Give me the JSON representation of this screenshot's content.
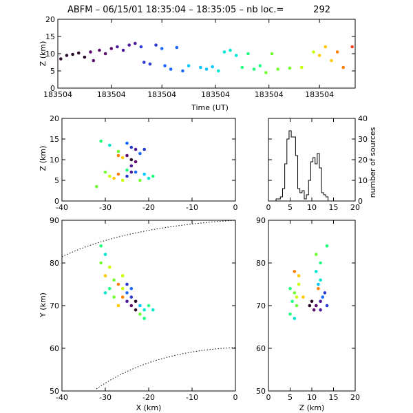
{
  "title": {
    "text": "ABFM – 06/15/01 18:35:04 – 18:35:05 – nb loc.=",
    "count": "292"
  },
  "palette": [
    "#2a0a2a",
    "#5a0a6a",
    "#4a1a9a",
    "#2a3ad0",
    "#1a6aff",
    "#00c8ff",
    "#00e8d0",
    "#20ff80",
    "#70ff30",
    "#c8ff00",
    "#ffc800",
    "#ff8000",
    "#ff4020"
  ],
  "chart_data": [
    {
      "id": "time-height",
      "type": "scatter",
      "xlabel": "Time (UT)",
      "ylabel": "Z (km)",
      "x_tick_labels": [
        "183504",
        "183504",
        "183504",
        "183504",
        "183504",
        "183504"
      ],
      "ylim": [
        0,
        20
      ],
      "y_ticks": [
        0,
        5,
        10,
        15,
        20
      ],
      "points": [
        {
          "t": 0.01,
          "z": 8.5,
          "c": 0
        },
        {
          "t": 0.03,
          "z": 9.5,
          "c": 0
        },
        {
          "t": 0.05,
          "z": 9.8,
          "c": 0
        },
        {
          "t": 0.07,
          "z": 10.2,
          "c": 0
        },
        {
          "t": 0.09,
          "z": 9.0,
          "c": 0
        },
        {
          "t": 0.11,
          "z": 10.5,
          "c": 1
        },
        {
          "t": 0.12,
          "z": 8.0,
          "c": 1
        },
        {
          "t": 0.14,
          "z": 11.0,
          "c": 1
        },
        {
          "t": 0.16,
          "z": 10.0,
          "c": 1
        },
        {
          "t": 0.18,
          "z": 11.5,
          "c": 1
        },
        {
          "t": 0.2,
          "z": 12.0,
          "c": 2
        },
        {
          "t": 0.22,
          "z": 11.0,
          "c": 2
        },
        {
          "t": 0.24,
          "z": 12.5,
          "c": 2
        },
        {
          "t": 0.26,
          "z": 13.0,
          "c": 2
        },
        {
          "t": 0.28,
          "z": 12.0,
          "c": 3
        },
        {
          "t": 0.29,
          "z": 7.5,
          "c": 3
        },
        {
          "t": 0.31,
          "z": 7.0,
          "c": 3
        },
        {
          "t": 0.33,
          "z": 12.5,
          "c": 3
        },
        {
          "t": 0.35,
          "z": 11.5,
          "c": 4
        },
        {
          "t": 0.36,
          "z": 6.5,
          "c": 4
        },
        {
          "t": 0.38,
          "z": 5.5,
          "c": 4
        },
        {
          "t": 0.4,
          "z": 11.8,
          "c": 4
        },
        {
          "t": 0.42,
          "z": 5.0,
          "c": 4
        },
        {
          "t": 0.44,
          "z": 6.5,
          "c": 5
        },
        {
          "t": 0.48,
          "z": 6.0,
          "c": 5
        },
        {
          "t": 0.5,
          "z": 5.5,
          "c": 5
        },
        {
          "t": 0.52,
          "z": 6.2,
          "c": 5
        },
        {
          "t": 0.54,
          "z": 5.0,
          "c": 6
        },
        {
          "t": 0.56,
          "z": 10.5,
          "c": 6
        },
        {
          "t": 0.58,
          "z": 11.0,
          "c": 6
        },
        {
          "t": 0.6,
          "z": 9.5,
          "c": 6
        },
        {
          "t": 0.62,
          "z": 6.0,
          "c": 7
        },
        {
          "t": 0.64,
          "z": 10.0,
          "c": 7
        },
        {
          "t": 0.66,
          "z": 5.5,
          "c": 7
        },
        {
          "t": 0.68,
          "z": 6.5,
          "c": 7
        },
        {
          "t": 0.7,
          "z": 4.5,
          "c": 8
        },
        {
          "t": 0.72,
          "z": 10.0,
          "c": 8
        },
        {
          "t": 0.74,
          "z": 5.5,
          "c": 8
        },
        {
          "t": 0.78,
          "z": 5.8,
          "c": 8
        },
        {
          "t": 0.82,
          "z": 6.0,
          "c": 9
        },
        {
          "t": 0.86,
          "z": 10.5,
          "c": 9
        },
        {
          "t": 0.88,
          "z": 9.5,
          "c": 10
        },
        {
          "t": 0.9,
          "z": 12.0,
          "c": 10
        },
        {
          "t": 0.92,
          "z": 8.0,
          "c": 10
        },
        {
          "t": 0.94,
          "z": 10.5,
          "c": 11
        },
        {
          "t": 0.96,
          "z": 6.0,
          "c": 11
        },
        {
          "t": 0.99,
          "z": 12.0,
          "c": 12
        }
      ]
    },
    {
      "id": "xz",
      "type": "scatter",
      "ylabel": "Z (km)",
      "xlim": [
        -40,
        0
      ],
      "x_ticks": [
        -40,
        -30,
        -20,
        -10,
        0
      ],
      "ylim": [
        0,
        20
      ],
      "y_ticks": [
        0,
        5,
        10,
        15,
        20
      ],
      "points": [
        {
          "x": -31,
          "z": 14.5,
          "c": 7
        },
        {
          "x": -29,
          "z": 13.5,
          "c": 6
        },
        {
          "x": -27,
          "z": 12.0,
          "c": 8
        },
        {
          "x": -25,
          "z": 14.0,
          "c": 4
        },
        {
          "x": -24,
          "z": 13.0,
          "c": 3
        },
        {
          "x": -23,
          "z": 12.5,
          "c": 2
        },
        {
          "x": -25,
          "z": 11.0,
          "c": 1
        },
        {
          "x": -24,
          "z": 10.0,
          "c": 0
        },
        {
          "x": -26,
          "z": 10.5,
          "c": 10
        },
        {
          "x": -27,
          "z": 11.0,
          "c": 11
        },
        {
          "x": -22,
          "z": 11.5,
          "c": 4
        },
        {
          "x": -23,
          "z": 9.5,
          "c": 1
        },
        {
          "x": -24,
          "z": 8.5,
          "c": 2
        },
        {
          "x": -25,
          "z": 7.5,
          "c": 7
        },
        {
          "x": -30,
          "z": 7.0,
          "c": 8
        },
        {
          "x": -29,
          "z": 6.0,
          "c": 9
        },
        {
          "x": -28,
          "z": 5.5,
          "c": 10
        },
        {
          "x": -27,
          "z": 6.5,
          "c": 11
        },
        {
          "x": -26,
          "z": 5.0,
          "c": 9
        },
        {
          "x": -23,
          "z": 7.0,
          "c": 4
        },
        {
          "x": -21,
          "z": 6.5,
          "c": 5
        },
        {
          "x": -20,
          "z": 5.5,
          "c": 6
        },
        {
          "x": -19,
          "z": 6.0,
          "c": 7
        },
        {
          "x": -22,
          "z": 5.0,
          "c": 8
        },
        {
          "x": -32,
          "z": 3.5,
          "c": 8
        },
        {
          "x": -25,
          "z": 6.0,
          "c": 3
        },
        {
          "x": -24,
          "z": 7.0,
          "c": 2
        },
        {
          "x": -21,
          "z": 12.5,
          "c": 3
        }
      ]
    },
    {
      "id": "histogram",
      "type": "line",
      "ylabel": "number of sources",
      "xlim": [
        0,
        20
      ],
      "x_ticks": [
        0,
        5,
        10,
        15,
        20
      ],
      "ylim": [
        0,
        40
      ],
      "y_ticks": [
        0,
        10,
        20,
        30,
        40
      ],
      "x": [
        1.5,
        2.0,
        2.5,
        3.0,
        3.5,
        4.0,
        4.5,
        5.0,
        5.5,
        6.0,
        6.5,
        7.0,
        7.5,
        8.0,
        8.5,
        9.0,
        9.5,
        10.0,
        10.5,
        11.0,
        11.5,
        12.0,
        12.5,
        13.0,
        13.5,
        14.0,
        14.5
      ],
      "values": [
        0,
        1,
        1,
        2,
        6,
        18,
        30,
        34,
        31,
        31,
        22,
        6,
        4,
        5,
        1,
        3,
        10,
        19,
        21,
        18,
        23,
        16,
        4,
        3,
        2,
        0,
        0
      ]
    },
    {
      "id": "plan-xy",
      "type": "scatter",
      "xlabel": "X (km)",
      "ylabel": "Y (km)",
      "xlim": [
        -40,
        0
      ],
      "x_ticks": [
        -40,
        -30,
        -20,
        -10,
        0
      ],
      "ylim": [
        50,
        90
      ],
      "y_ticks": [
        50,
        60,
        70,
        80,
        90
      ],
      "points": [
        {
          "x": -31,
          "y": 84,
          "c": 7
        },
        {
          "x": -30,
          "y": 82,
          "c": 6
        },
        {
          "x": -31,
          "y": 80,
          "c": 8
        },
        {
          "x": -29,
          "y": 79,
          "c": 9
        },
        {
          "x": -30,
          "y": 77,
          "c": 10
        },
        {
          "x": -28,
          "y": 76,
          "c": 8
        },
        {
          "x": -29,
          "y": 74,
          "c": 7
        },
        {
          "x": -30,
          "y": 73,
          "c": 6
        },
        {
          "x": -27,
          "y": 75,
          "c": 11
        },
        {
          "x": -26,
          "y": 74,
          "c": 9
        },
        {
          "x": -25,
          "y": 73,
          "c": 4
        },
        {
          "x": -24,
          "y": 72,
          "c": 3
        },
        {
          "x": -25,
          "y": 71,
          "c": 2
        },
        {
          "x": -24,
          "y": 70,
          "c": 1
        },
        {
          "x": -23,
          "y": 71,
          "c": 0
        },
        {
          "x": -22,
          "y": 70,
          "c": 5
        },
        {
          "x": -21,
          "y": 69,
          "c": 6
        },
        {
          "x": -20,
          "y": 70,
          "c": 7
        },
        {
          "x": -19,
          "y": 69,
          "c": 6
        },
        {
          "x": -22,
          "y": 68,
          "c": 8
        },
        {
          "x": -21,
          "y": 67,
          "c": 7
        },
        {
          "x": -23,
          "y": 69,
          "c": 0
        },
        {
          "x": -26,
          "y": 72,
          "c": 11
        },
        {
          "x": -28,
          "y": 72,
          "c": 8
        },
        {
          "x": -27,
          "y": 70,
          "c": 10
        },
        {
          "x": -25,
          "y": 75,
          "c": 3
        },
        {
          "x": -24,
          "y": 74,
          "c": 4
        },
        {
          "x": -26,
          "y": 77,
          "c": 9
        }
      ]
    },
    {
      "id": "zy",
      "type": "scatter",
      "xlabel": "Z (km)",
      "xlim": [
        0,
        20
      ],
      "x_ticks": [
        0,
        5,
        10,
        15,
        20
      ],
      "ylim": [
        50,
        90
      ],
      "y_ticks": [
        50,
        60,
        70,
        80,
        90
      ],
      "points": [
        {
          "z": 13.5,
          "y": 84,
          "c": 7
        },
        {
          "z": 11.0,
          "y": 82,
          "c": 8
        },
        {
          "z": 12.0,
          "y": 80,
          "c": 7
        },
        {
          "z": 11.0,
          "y": 78,
          "c": 6
        },
        {
          "z": 6.0,
          "y": 78,
          "c": 11
        },
        {
          "z": 7.0,
          "y": 77,
          "c": 10
        },
        {
          "z": 7.0,
          "y": 75,
          "c": 9
        },
        {
          "z": 6.0,
          "y": 73,
          "c": 8
        },
        {
          "z": 5.5,
          "y": 71,
          "c": 7
        },
        {
          "z": 6.5,
          "y": 70,
          "c": 8
        },
        {
          "z": 5.0,
          "y": 68,
          "c": 7
        },
        {
          "z": 6.0,
          "y": 67,
          "c": 6
        },
        {
          "z": 10.0,
          "y": 71,
          "c": 0
        },
        {
          "z": 11.0,
          "y": 70,
          "c": 1
        },
        {
          "z": 12.0,
          "y": 71,
          "c": 2
        },
        {
          "z": 13.0,
          "y": 73,
          "c": 3
        },
        {
          "z": 12.5,
          "y": 72,
          "c": 4
        },
        {
          "z": 11.5,
          "y": 74,
          "c": 11
        },
        {
          "z": 10.5,
          "y": 69,
          "c": 1
        },
        {
          "z": 9.5,
          "y": 70,
          "c": 0
        },
        {
          "z": 13.5,
          "y": 70,
          "c": 3
        },
        {
          "z": 12.0,
          "y": 69,
          "c": 2
        },
        {
          "z": 6.5,
          "y": 72,
          "c": 9
        },
        {
          "z": 8.0,
          "y": 72,
          "c": 10
        },
        {
          "z": 12.0,
          "y": 76,
          "c": 6
        },
        {
          "z": 11.5,
          "y": 75,
          "c": 5
        },
        {
          "z": 5.0,
          "y": 74,
          "c": 7
        }
      ]
    }
  ]
}
